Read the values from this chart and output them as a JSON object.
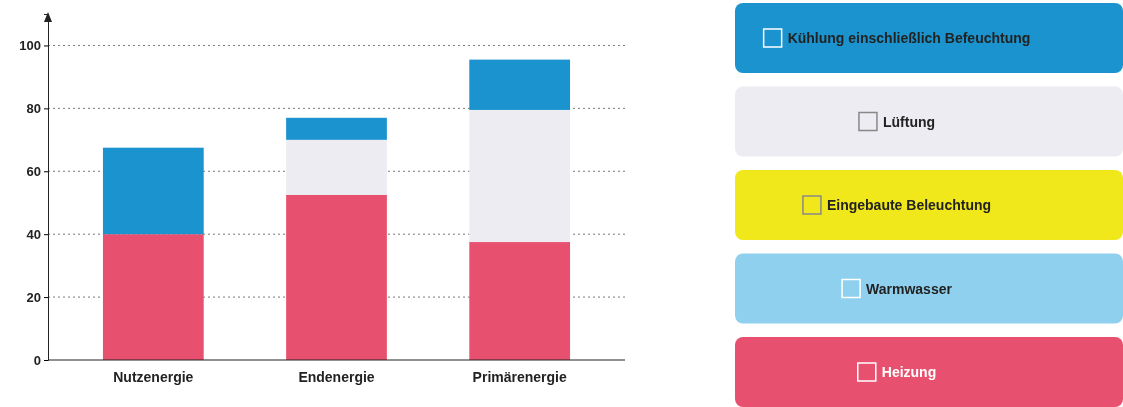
{
  "chart_data": {
    "type": "bar",
    "stacked": true,
    "categories": [
      "Nutzenergie",
      "Endenergie",
      "Primärenergie"
    ],
    "series": [
      {
        "name": "Heizung",
        "color": "#e8506f",
        "values": [
          40,
          52.5,
          37.5
        ]
      },
      {
        "name": "Warmwasser",
        "color": "#8fd0ee",
        "values": [
          0,
          0,
          0
        ]
      },
      {
        "name": "Eingebaute Beleuchtung",
        "color": "#f0e81a",
        "values": [
          0,
          0,
          0
        ]
      },
      {
        "name": "Lüftung",
        "color": "#ececf2",
        "values": [
          0,
          17.5,
          42
        ]
      },
      {
        "name": "Kühlung einschließlich Befeuchtung",
        "color": "#1a93cf",
        "values": [
          27.5,
          7,
          16
        ]
      }
    ],
    "ylim": [
      0,
      110
    ],
    "yticks": [
      0,
      20,
      40,
      60,
      80,
      100
    ],
    "grid": "y",
    "legend": "right"
  }
}
